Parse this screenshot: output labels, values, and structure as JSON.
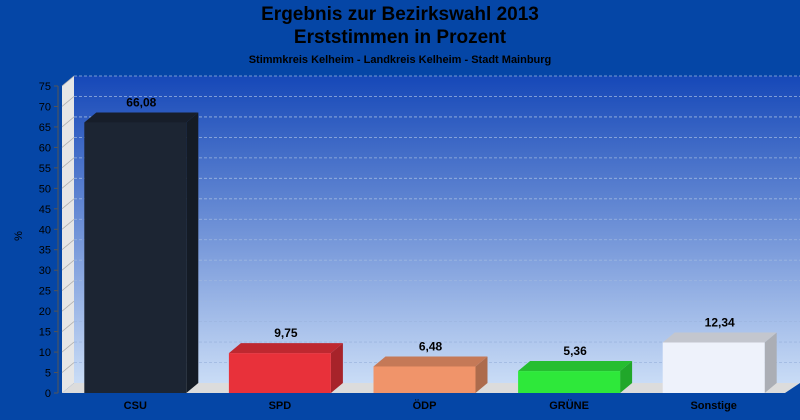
{
  "chart_data": {
    "type": "bar",
    "title": "Ergebnis zur Bezirkswahl 2013",
    "subtitle": "Erststimmen in Prozent",
    "subtitle2": "Stimmkreis Kelheim - Landkreis Kelheim - Stadt Mainburg",
    "ylabel": "%",
    "xlabel": "",
    "ylim": [
      0,
      75
    ],
    "yticks": [
      0,
      5,
      10,
      15,
      20,
      25,
      30,
      35,
      40,
      45,
      50,
      55,
      60,
      65,
      70,
      75
    ],
    "grid": true,
    "categories": [
      "CSU",
      "SPD",
      "ÖDP",
      "GRÜNE",
      "Sonstige"
    ],
    "values": [
      66.08,
      9.75,
      6.48,
      5.36,
      12.34
    ],
    "value_labels": [
      "66,08",
      "9,75",
      "6,48",
      "5,36",
      "12,34"
    ],
    "colors": [
      "#1c2533",
      "#e8313a",
      "#f0946a",
      "#2ee83a",
      "#eef2fb"
    ]
  }
}
